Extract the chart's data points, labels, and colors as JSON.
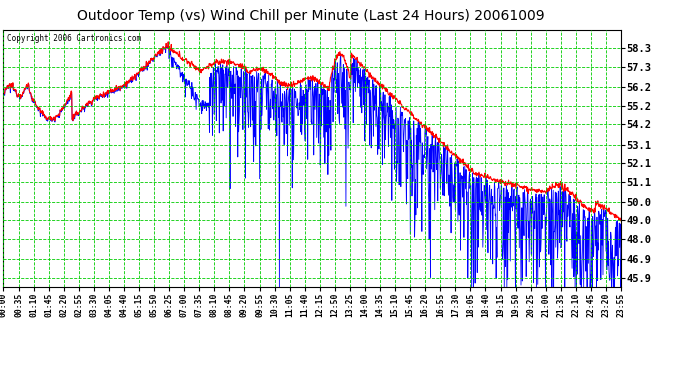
{
  "title": "Outdoor Temp (vs) Wind Chill per Minute (Last 24 Hours) 20061009",
  "copyright_text": "Copyright 2006 Cartronics.com",
  "background_color": "#ffffff",
  "plot_bg_color": "#ffffff",
  "grid_color": "#00cc00",
  "title_fontsize": 10,
  "yticks": [
    45.9,
    46.9,
    48.0,
    49.0,
    50.0,
    51.1,
    52.1,
    53.1,
    54.2,
    55.2,
    56.2,
    57.3,
    58.3
  ],
  "ylim": [
    45.4,
    59.3
  ],
  "temp_color": "#ff0000",
  "wind_color": "#0000ff",
  "xtick_labels": [
    "00:00",
    "00:35",
    "01:10",
    "01:45",
    "02:20",
    "02:55",
    "03:30",
    "04:05",
    "04:40",
    "05:15",
    "05:50",
    "06:25",
    "07:00",
    "07:35",
    "08:10",
    "08:45",
    "09:20",
    "09:55",
    "10:30",
    "11:05",
    "11:40",
    "12:15",
    "12:50",
    "13:25",
    "14:00",
    "14:35",
    "15:10",
    "15:45",
    "16:20",
    "16:55",
    "17:30",
    "18:05",
    "18:40",
    "19:15",
    "19:50",
    "20:25",
    "21:00",
    "21:35",
    "22:10",
    "22:45",
    "23:20",
    "23:55"
  ]
}
